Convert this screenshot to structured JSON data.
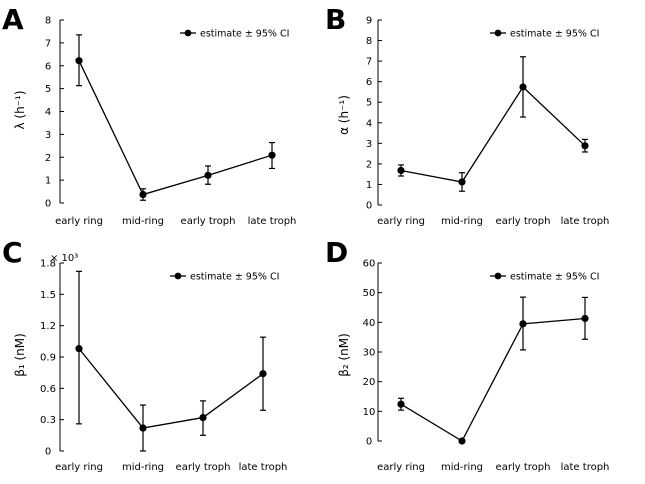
{
  "legend_label": "estimate ± 95% CI",
  "chart_data": [
    {
      "type": "line",
      "panel": "A",
      "ylabel": "λ (h⁻¹)",
      "categories": [
        "early ring",
        "mid-ring",
        "early troph",
        "late troph"
      ],
      "ylim": [
        0,
        8
      ],
      "yticks": [
        0,
        1,
        2,
        3,
        4,
        5,
        6,
        7,
        8
      ],
      "ytick_labels": [
        "0",
        "1",
        "2",
        "3",
        "4",
        "5",
        "6",
        "7",
        "8"
      ],
      "series": [
        {
          "values": [
            6.22,
            0.37,
            1.21,
            2.09
          ],
          "ci_low": [
            5.13,
            0.12,
            0.82,
            1.51
          ],
          "ci_high": [
            7.35,
            0.62,
            1.62,
            2.64
          ]
        }
      ],
      "legend": "top-right",
      "grid": false
    },
    {
      "type": "line",
      "panel": "B",
      "ylabel": "α (h⁻¹)",
      "categories": [
        "early ring",
        "mid-ring",
        "early troph",
        "late troph"
      ],
      "ylim": [
        0,
        9
      ],
      "yticks": [
        0,
        1,
        2,
        3,
        4,
        5,
        6,
        7,
        8,
        9
      ],
      "ytick_labels": [
        "0",
        "1",
        "2",
        "3",
        "4",
        "5",
        "6",
        "7",
        "8",
        "9"
      ],
      "series": [
        {
          "values": [
            1.68,
            1.12,
            5.74,
            2.88
          ],
          "ci_low": [
            1.41,
            0.67,
            4.28,
            2.58
          ],
          "ci_high": [
            1.95,
            1.57,
            7.21,
            3.19
          ]
        }
      ],
      "legend": "top-right",
      "grid": false
    },
    {
      "type": "line",
      "panel": "C",
      "ylabel": "β₁ (nM)",
      "multiplier": "× 10³",
      "categories": [
        "early ring",
        "mid-ring",
        "early troph",
        "late troph"
      ],
      "ylim": [
        0,
        1.8
      ],
      "yticks": [
        0,
        0.3,
        0.6,
        0.9,
        1.2,
        1.5,
        1.8
      ],
      "ytick_labels": [
        "0",
        "0.3",
        "0.6",
        "0.9",
        "1.2",
        "1.5",
        "1.8"
      ],
      "series": [
        {
          "values": [
            0.98,
            0.22,
            0.32,
            0.74
          ],
          "ci_low": [
            0.26,
            0.0,
            0.15,
            0.39
          ],
          "ci_high": [
            1.72,
            0.44,
            0.48,
            1.09
          ]
        }
      ],
      "legend": "top-right",
      "grid": false
    },
    {
      "type": "line",
      "panel": "D",
      "ylabel": "β₂ (nM)",
      "categories": [
        "early ring",
        "mid-ring",
        "early troph",
        "late troph"
      ],
      "ylim": [
        0,
        60
      ],
      "yticks": [
        0,
        10,
        20,
        30,
        40,
        50,
        60
      ],
      "ytick_labels": [
        "0",
        "10",
        "20",
        "30",
        "40",
        "50",
        "60"
      ],
      "series": [
        {
          "values": [
            12.4,
            0.0,
            39.5,
            41.3
          ],
          "ci_low": [
            10.4,
            0.0,
            30.7,
            34.3
          ],
          "ci_high": [
            14.4,
            0.0,
            48.5,
            48.4
          ]
        }
      ],
      "legend": "top-right",
      "grid": false
    }
  ]
}
